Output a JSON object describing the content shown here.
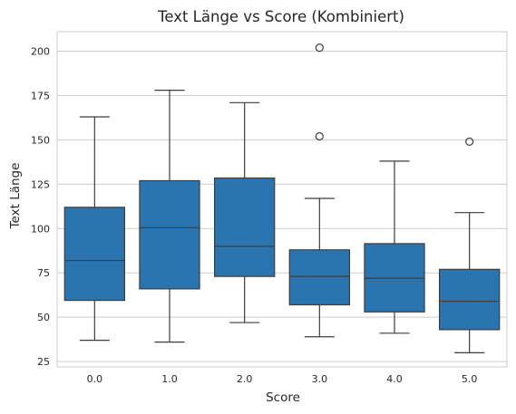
{
  "chart_data": {
    "type": "box",
    "title": "Text Länge vs Score (Kombiniert)",
    "xlabel": "Score",
    "ylabel": "Text Länge",
    "categories": [
      "0.0",
      "1.0",
      "2.0",
      "3.0",
      "4.0",
      "5.0"
    ],
    "ylim": [
      22,
      211
    ],
    "yticks": [
      25,
      50,
      75,
      100,
      125,
      150,
      175,
      200
    ],
    "grid": true,
    "box_color": "#2a75b0",
    "line_color": "#3d3d3d",
    "grid_color": "#cccccc",
    "boxes": [
      {
        "category": "0.0",
        "whisker_low": 37,
        "q1": 59.5,
        "median": 82,
        "q3": 112,
        "whisker_high": 163,
        "outliers": []
      },
      {
        "category": "1.0",
        "whisker_low": 36,
        "q1": 66,
        "median": 100.5,
        "q3": 127,
        "whisker_high": 178,
        "outliers": []
      },
      {
        "category": "2.0",
        "whisker_low": 47,
        "q1": 73,
        "median": 90,
        "q3": 128.5,
        "whisker_high": 171,
        "outliers": []
      },
      {
        "category": "3.0",
        "whisker_low": 39,
        "q1": 57,
        "median": 73,
        "q3": 88,
        "whisker_high": 117,
        "outliers": [
          152,
          202
        ]
      },
      {
        "category": "4.0",
        "whisker_low": 41,
        "q1": 53,
        "median": 72,
        "q3": 91.5,
        "whisker_high": 138,
        "outliers": []
      },
      {
        "category": "5.0",
        "whisker_low": 30,
        "q1": 43,
        "median": 59,
        "q3": 77,
        "whisker_high": 109,
        "outliers": [
          149
        ]
      }
    ]
  }
}
